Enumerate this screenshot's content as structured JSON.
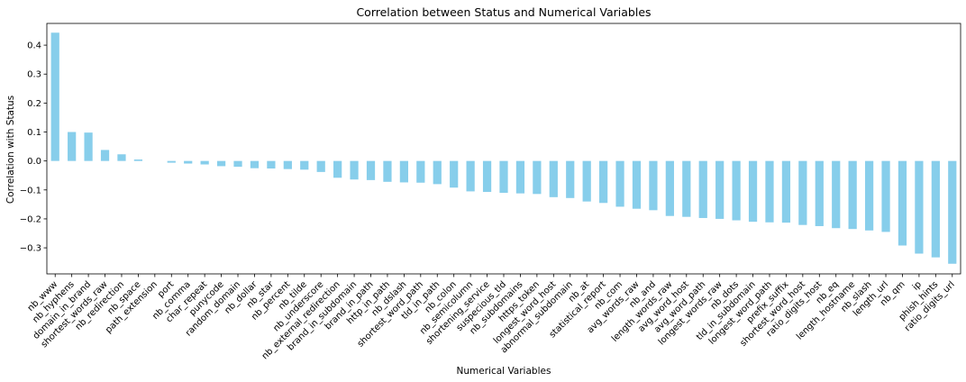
{
  "chart_data": {
    "type": "bar",
    "title": "Correlation between Status and Numerical Variables",
    "xlabel": "Numerical Variables",
    "ylabel": "Correlation with Status",
    "ylim": [
      -0.39,
      0.475
    ],
    "yticks": [
      -0.3,
      -0.2,
      -0.1,
      0.0,
      0.1,
      0.2,
      0.3,
      0.4
    ],
    "ytick_labels": [
      "−0.3",
      "−0.2",
      "−0.1",
      "0.0",
      "0.1",
      "0.2",
      "0.3",
      "0.4"
    ],
    "bar_color": "#87CEEB",
    "grid": false,
    "categories": [
      "nb_www",
      "nb_hyphens",
      "domain_in_brand",
      "shortest_words_raw",
      "nb_redirection",
      "nb_space",
      "path_extension",
      "port",
      "nb_comma",
      "char_repeat",
      "punycode",
      "random_domain",
      "nb_dollar",
      "nb_star",
      "nb_percent",
      "nb_tilde",
      "nb_underscore",
      "nb_external_redirection",
      "brand_in_subdomain",
      "brand_in_path",
      "http_in_path",
      "nb_dslash",
      "shortest_word_path",
      "tld_in_path",
      "nb_colon",
      "nb_semicolumn",
      "shortening_service",
      "suspecious_tld",
      "nb_subdomains",
      "https_token",
      "longest_word_host",
      "abnormal_subdomain",
      "nb_at",
      "statistical_report",
      "nb_com",
      "avg_words_raw",
      "nb_and",
      "length_words_raw",
      "avg_word_host",
      "avg_word_path",
      "longest_words_raw",
      "nb_dots",
      "tld_in_subdomain",
      "longest_word_path",
      "prefix_suffix",
      "shortest_word_host",
      "ratio_digits_host",
      "nb_eq",
      "length_hostname",
      "nb_slash",
      "length_url",
      "nb_qm",
      "ip",
      "phish_hints",
      "ratio_digits_url"
    ],
    "values": [
      0.443,
      0.1,
      0.098,
      0.038,
      0.023,
      0.005,
      0.0,
      -0.006,
      -0.009,
      -0.012,
      -0.018,
      -0.02,
      -0.025,
      -0.026,
      -0.028,
      -0.03,
      -0.038,
      -0.058,
      -0.064,
      -0.066,
      -0.072,
      -0.074,
      -0.075,
      -0.08,
      -0.092,
      -0.105,
      -0.107,
      -0.11,
      -0.112,
      -0.114,
      -0.125,
      -0.128,
      -0.14,
      -0.145,
      -0.158,
      -0.165,
      -0.17,
      -0.19,
      -0.193,
      -0.197,
      -0.2,
      -0.205,
      -0.21,
      -0.212,
      -0.213,
      -0.221,
      -0.225,
      -0.232,
      -0.235,
      -0.24,
      -0.245,
      -0.292,
      -0.32,
      -0.333,
      -0.355
    ]
  }
}
